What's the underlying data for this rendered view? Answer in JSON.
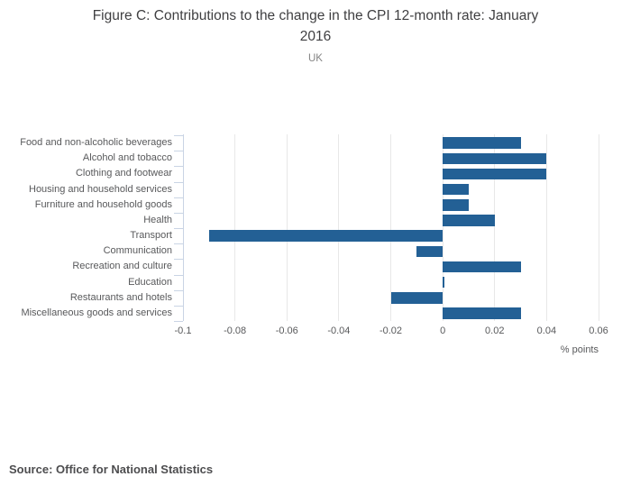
{
  "header": {
    "title_line1": "Figure C: Contributions to the change in the CPI 12-month rate: January",
    "title_line2": "2016",
    "subtitle": "UK"
  },
  "chart_data": {
    "type": "bar",
    "orientation": "horizontal",
    "title": "Figure C: Contributions to the change in the CPI 12-month rate: January 2016",
    "subtitle": "UK",
    "categories": [
      "Food and non-alcoholic beverages",
      "Alcohol and tobacco",
      "Clothing and footwear",
      "Housing and household services",
      "Furniture and household goods",
      "Health",
      "Transport",
      "Communication",
      "Recreation and culture",
      "Education",
      "Restaurants and hotels",
      "Miscellaneous goods and services"
    ],
    "values": [
      0.03,
      0.04,
      0.04,
      0.01,
      0.01,
      0.02,
      -0.09,
      -0.01,
      0.03,
      0,
      -0.02,
      0.03
    ],
    "xlabel": "% points",
    "ylabel": "",
    "xlim": [
      -0.1,
      0.06
    ],
    "xticks": [
      -0.1,
      -0.08,
      -0.06,
      -0.04,
      -0.02,
      0,
      0.02,
      0.04,
      0.06
    ],
    "xtick_labels": [
      "-0.1",
      "-0.08",
      "-0.06",
      "-0.04",
      "-0.02",
      "0",
      "0.02",
      "0.04",
      "0.06"
    ],
    "grid": true,
    "legend": false,
    "bar_color": "#236095",
    "grid_color": "#e8e8e8",
    "axis_color": "#c9d4e4"
  },
  "footer": {
    "source": "Source: Office for National Statistics"
  }
}
